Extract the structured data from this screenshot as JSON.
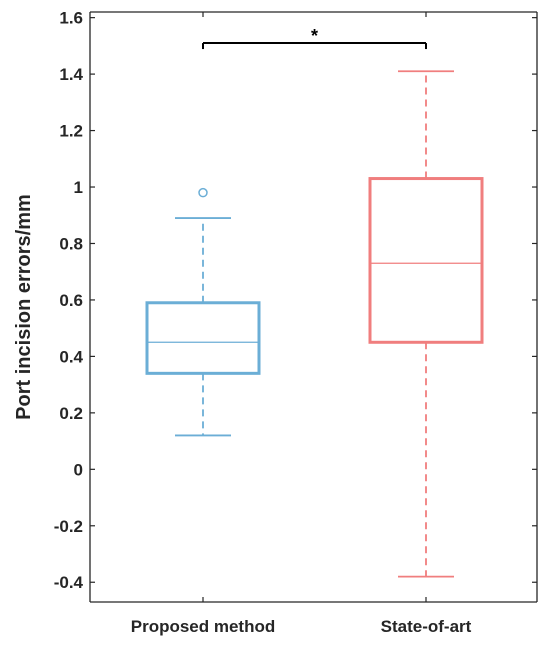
{
  "chart_data": {
    "type": "boxplot",
    "title": "",
    "xlabel": "",
    "ylabel": "Port incision errors/mm",
    "ylim": [
      -0.47,
      1.62
    ],
    "yticks": [
      -0.4,
      -0.2,
      0,
      0.2,
      0.4,
      0.6,
      0.8,
      1,
      1.2,
      1.4,
      1.6
    ],
    "ytick_labels": [
      "-0.4",
      "-0.2",
      "0",
      "0.2",
      "0.4",
      "0.6",
      "0.8",
      "1",
      "1.2",
      "1.4",
      "1.6"
    ],
    "grid": false,
    "categories": [
      "Proposed method",
      "State-of-art"
    ],
    "series": [
      {
        "category": "Proposed method",
        "color": "#6baed6",
        "whisker_low": 0.12,
        "q1": 0.34,
        "median": 0.45,
        "q3": 0.59,
        "whisker_high": 0.89,
        "outliers": [
          0.98
        ]
      },
      {
        "category": "State-of-art",
        "color": "#f07e7e",
        "whisker_low": -0.38,
        "q1": 0.45,
        "median": 0.73,
        "q3": 1.03,
        "whisker_high": 1.41,
        "outliers": []
      }
    ],
    "significance": {
      "between": [
        "Proposed method",
        "State-of-art"
      ],
      "y": 1.51,
      "label": "*"
    }
  }
}
